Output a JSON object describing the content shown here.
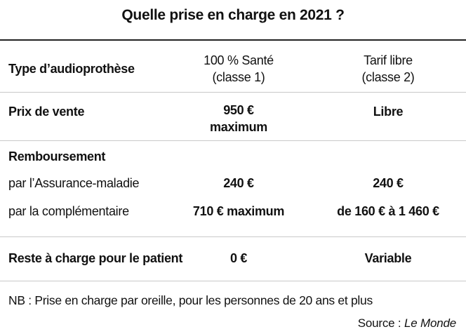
{
  "title": "Quelle prise en charge en 2021 ?",
  "header": {
    "label": "Type d’audioprothèse",
    "col1_line1": "100 % Santé",
    "col1_line2": "(classe 1)",
    "col2_line1": "Tarif libre",
    "col2_line2": "(classe 2)"
  },
  "prix": {
    "label": "Prix de vente",
    "col1_line1": "950 €",
    "col1_line2": "maximum",
    "col2": "Libre"
  },
  "remboursement": {
    "label": "Remboursement",
    "assurance": {
      "label": "par l’Assurance-maladie",
      "col1": "240 €",
      "col2": "240 €"
    },
    "complementaire": {
      "label": "par la complémentaire",
      "col1": "710 € maximum",
      "col2": "de 160 € à 1 460 €"
    }
  },
  "reste": {
    "label": "Reste à charge pour le patient",
    "col1": "0 €",
    "col2": "Variable"
  },
  "note": "NB : Prise en charge par oreille, pour les personnes de 20 ans et plus",
  "source_prefix": "Source : ",
  "source_name": "Le Monde"
}
